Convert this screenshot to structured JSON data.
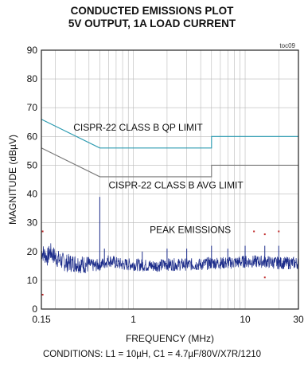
{
  "chart_data": {
    "type": "line",
    "title": "CONDUCTED EMISSIONS PLOT",
    "subtitle": "5V OUTPUT, 1A LOAD CURRENT",
    "tag": "toc09",
    "xlabel": "FREQUENCY (MHz)",
    "ylabel": "MAGNITUDE (dBµV)",
    "x_scale": "log",
    "xlim": [
      0.15,
      30
    ],
    "ylim": [
      0,
      90
    ],
    "x_ticks": [
      {
        "value": 0.15,
        "label": "0.15"
      },
      {
        "value": 1,
        "label": "1"
      },
      {
        "value": 10,
        "label": "10"
      },
      {
        "value": 30,
        "label": "30"
      }
    ],
    "y_ticks": [
      {
        "value": 0,
        "label": "0"
      },
      {
        "value": 10,
        "label": "10"
      },
      {
        "value": 20,
        "label": "20"
      },
      {
        "value": 30,
        "label": "30"
      },
      {
        "value": 40,
        "label": "40"
      },
      {
        "value": 50,
        "label": "50"
      },
      {
        "value": 60,
        "label": "60"
      },
      {
        "value": 70,
        "label": "70"
      },
      {
        "value": 80,
        "label": "80"
      },
      {
        "value": 90,
        "label": "90"
      }
    ],
    "grid": true,
    "legend": "none",
    "series": [
      {
        "name": "CISPR-22 CLASS B QP LIMIT",
        "color": "#2a9ab0",
        "points": [
          [
            0.15,
            66
          ],
          [
            0.5,
            56
          ],
          [
            5,
            56
          ],
          [
            5,
            60
          ],
          [
            30,
            60
          ]
        ]
      },
      {
        "name": "CISPR-22 CLASS B AVG LIMIT",
        "color": "#777777",
        "points": [
          [
            0.15,
            56
          ],
          [
            0.5,
            46
          ],
          [
            5,
            46
          ],
          [
            5,
            50
          ],
          [
            30,
            50
          ]
        ]
      },
      {
        "name": "PEAK EMISSIONS",
        "color": "#1c2c8a",
        "style": "noise",
        "points": [
          [
            0.15,
            20
          ],
          [
            0.16,
            19
          ],
          [
            0.17,
            18
          ],
          [
            0.18,
            20
          ],
          [
            0.2,
            18
          ],
          [
            0.22,
            17
          ],
          [
            0.25,
            16
          ],
          [
            0.3,
            16
          ],
          [
            0.35,
            15.5
          ],
          [
            0.4,
            15.5
          ],
          [
            0.45,
            15
          ],
          [
            0.55,
            16
          ],
          [
            0.6,
            17
          ],
          [
            0.7,
            16
          ],
          [
            0.8,
            15.5
          ],
          [
            1,
            15.5
          ],
          [
            1.5,
            15
          ],
          [
            2,
            15.5
          ],
          [
            3,
            15.5
          ],
          [
            4,
            15.5
          ],
          [
            5,
            16
          ],
          [
            7,
            16
          ],
          [
            10,
            16.5
          ],
          [
            15,
            16.5
          ],
          [
            20,
            16
          ],
          [
            30,
            16
          ]
        ],
        "spikes": [
          [
            0.5,
            39
          ],
          [
            0.55,
            21
          ],
          [
            1.2,
            20
          ],
          [
            2,
            21
          ],
          [
            3,
            21
          ],
          [
            5,
            22
          ],
          [
            7,
            21
          ],
          [
            10,
            22
          ],
          [
            15,
            22
          ],
          [
            20,
            22
          ]
        ],
        "markers": [
          [
            0.154,
            27
          ],
          [
            0.154,
            5
          ],
          [
            12,
            27
          ],
          [
            15,
            26
          ],
          [
            20,
            27
          ],
          [
            15,
            11
          ]
        ]
      }
    ],
    "annotations": [
      {
        "text": "CISPR-22 CLASS B QP LIMIT",
        "x": 0.29,
        "y": 62
      },
      {
        "text": "CISPR-22 CLASS B AVG LIMIT",
        "x": 0.6,
        "y": 42
      },
      {
        "text": "PEAK EMISSIONS",
        "x": 1.4,
        "y": 26.5
      }
    ]
  },
  "conditions": "CONDITIONS: L1 = 10µH, C1 = 4.7µF/80V/X7R/1210"
}
